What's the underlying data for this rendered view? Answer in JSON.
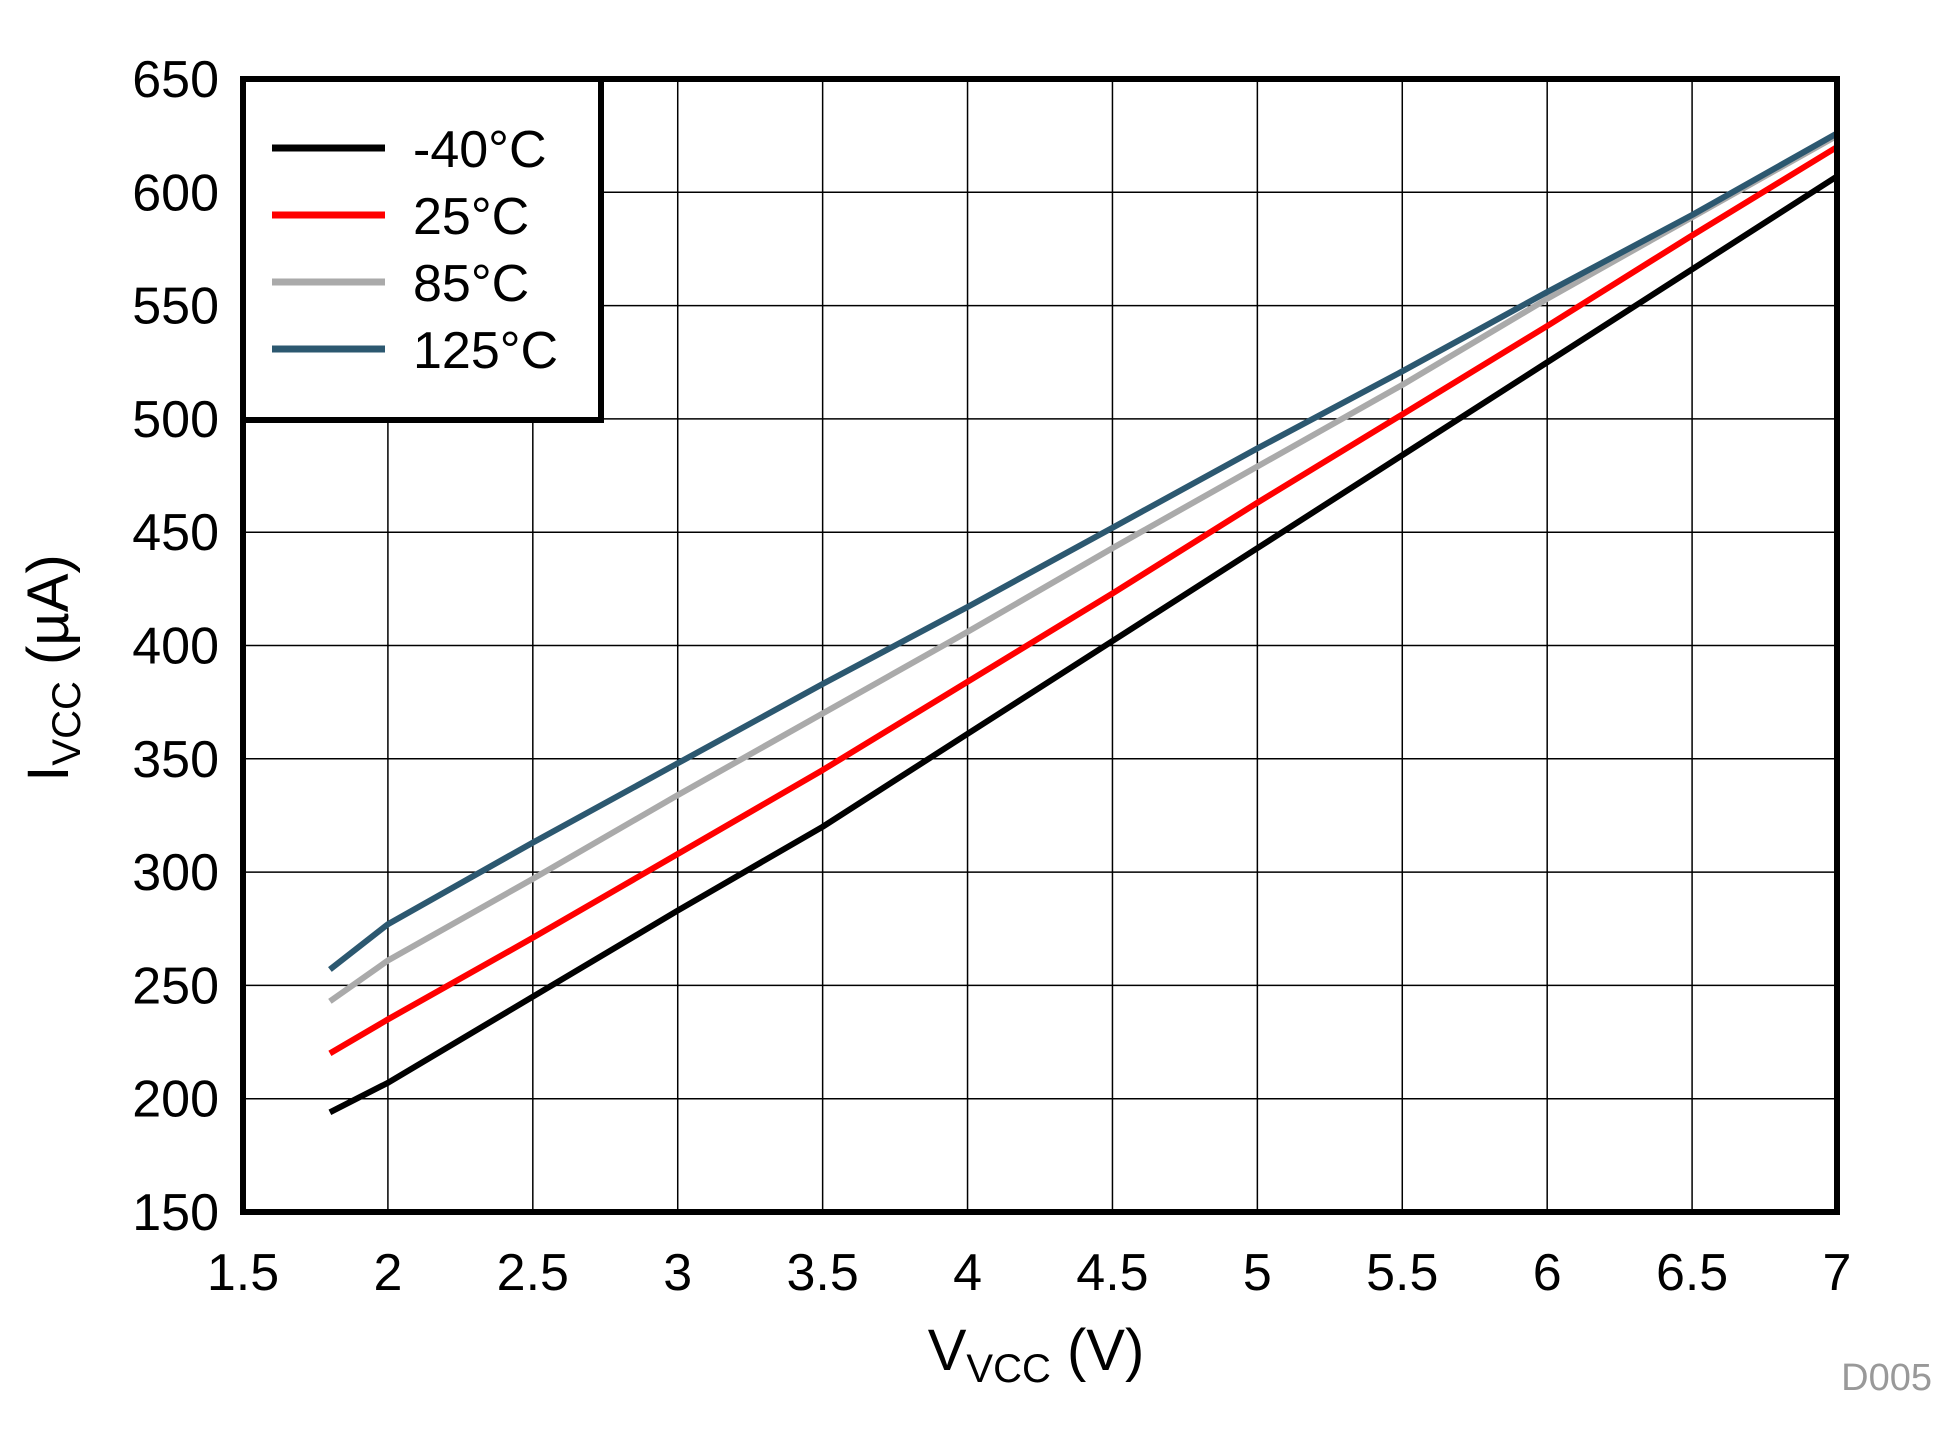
{
  "chart_data": {
    "type": "line",
    "title": "",
    "xlabel": {
      "main": "V",
      "sub": "VCC",
      "unit": " (V)"
    },
    "ylabel": {
      "main": "I",
      "sub": "VCC",
      "unit": " (µA)"
    },
    "xlim": [
      1.5,
      7
    ],
    "ylim": [
      150,
      650
    ],
    "xticks": [
      1.5,
      2,
      2.5,
      3,
      3.5,
      4,
      4.5,
      5,
      5.5,
      6,
      6.5,
      7
    ],
    "yticks": [
      150,
      200,
      250,
      300,
      350,
      400,
      450,
      500,
      550,
      600,
      650
    ],
    "xtick_labels": [
      "1.5",
      "2",
      "2.5",
      "3",
      "3.5",
      "4",
      "4.5",
      "5",
      "5.5",
      "6",
      "6.5",
      "7"
    ],
    "ytick_labels": [
      "150",
      "200",
      "250",
      "300",
      "350",
      "400",
      "450",
      "500",
      "550",
      "600",
      "650"
    ],
    "grid": true,
    "legend_position": "top-left",
    "watermark": "D005",
    "series": [
      {
        "name": "-40°C",
        "color": "#000000",
        "x": [
          1.8,
          2,
          2.5,
          3,
          3.5,
          4,
          4.5,
          5,
          5.5,
          6,
          6.5,
          7
        ],
        "y": [
          194,
          207,
          245,
          283,
          320,
          361,
          402,
          443,
          484,
          525,
          566,
          607
        ]
      },
      {
        "name": "25°C",
        "color": "#ff0000",
        "x": [
          1.8,
          2,
          2.5,
          3,
          3.5,
          4,
          4.5,
          5,
          5.5,
          6,
          6.5,
          7
        ],
        "y": [
          220,
          235,
          271,
          308,
          345,
          384,
          423,
          463,
          502,
          541,
          581,
          620
        ]
      },
      {
        "name": "85°C",
        "color": "#aaaaaa",
        "x": [
          1.8,
          2,
          2.5,
          3,
          3.5,
          4,
          4.5,
          5,
          5.5,
          6,
          6.5,
          7
        ],
        "y": [
          243,
          261,
          297,
          334,
          370,
          406,
          443,
          479,
          515,
          553,
          589,
          625
        ]
      },
      {
        "name": "125°C",
        "color": "#2c5870",
        "x": [
          1.8,
          2,
          2.5,
          3,
          3.5,
          4,
          4.5,
          5,
          5.5,
          6,
          6.5,
          7
        ],
        "y": [
          257,
          277,
          313,
          348,
          383,
          417,
          452,
          487,
          521,
          556,
          590,
          626
        ]
      }
    ]
  }
}
